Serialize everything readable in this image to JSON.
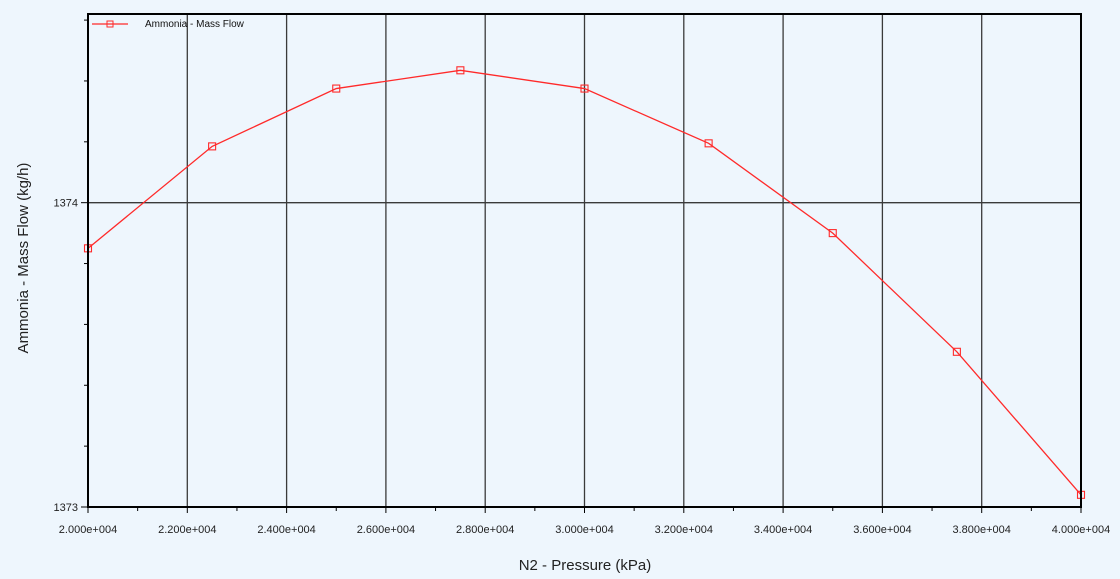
{
  "chart_data": {
    "type": "line",
    "title": "",
    "xlabel": "N2 - Pressure (kPa)",
    "ylabel": "Ammonia - Mass Flow (kg/h)",
    "xlim": [
      20000,
      40000
    ],
    "ylim": [
      1373,
      1374.62
    ],
    "x_ticks": [
      20000,
      22000,
      24000,
      26000,
      28000,
      30000,
      32000,
      34000,
      36000,
      38000,
      40000
    ],
    "x_tick_labels": [
      "2.000e+004",
      "2.200e+004",
      "2.400e+004",
      "2.600e+004",
      "2.800e+004",
      "3.000e+004",
      "3.200e+004",
      "3.400e+004",
      "3.600e+004",
      "3.800e+004",
      "4.000e+004"
    ],
    "y_ticks": [
      1373,
      1374
    ],
    "y_tick_labels": [
      "1373",
      "1374"
    ],
    "grid": true,
    "legend_position": "top-left",
    "series": [
      {
        "name": "Ammonia - Mass Flow",
        "color": "#ff2a2a",
        "marker": "square",
        "x": [
          20000,
          22500,
          25000,
          27500,
          30000,
          32500,
          35000,
          37500,
          40000
        ],
        "y": [
          1373.85,
          1374.185,
          1374.375,
          1374.435,
          1374.375,
          1374.195,
          1373.9,
          1373.51,
          1373.04
        ]
      }
    ]
  }
}
